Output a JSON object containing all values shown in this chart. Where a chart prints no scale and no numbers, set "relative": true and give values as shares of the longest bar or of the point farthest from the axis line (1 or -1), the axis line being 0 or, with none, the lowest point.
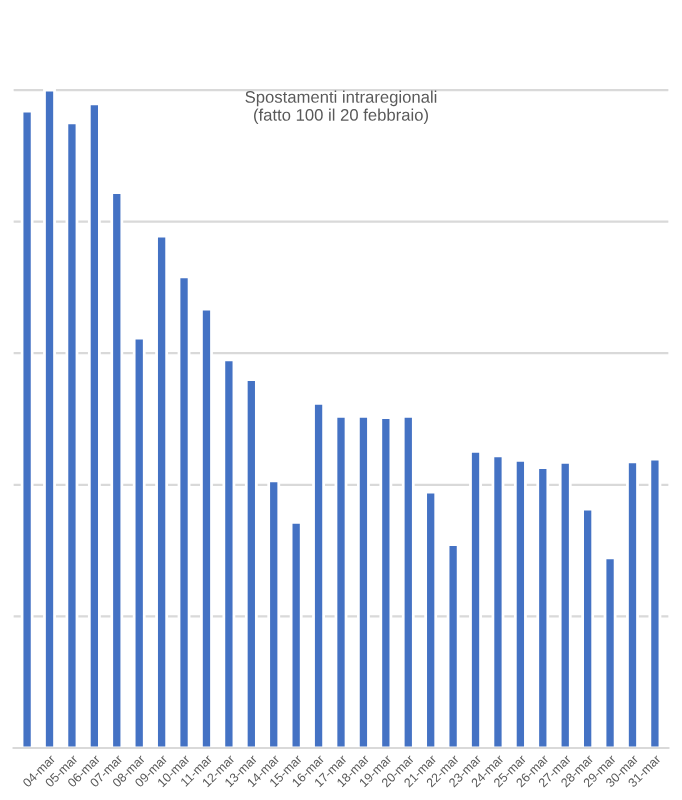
{
  "chart_data": {
    "type": "bar",
    "title": "Spostamenti intraregionali\n(fatto 100 il 20 febbraio)",
    "categories": [
      null,
      "04-mar",
      "05-mar",
      "06-mar",
      "07-mar",
      "08-mar",
      "09-mar",
      "10-mar",
      "11-mar",
      "12-mar",
      "13-mar",
      "14-mar",
      "15-mar",
      "16-mar",
      "17-mar",
      "18-mar",
      "19-mar",
      "20-mar",
      "21-mar",
      "22-mar",
      "23-mar",
      "24-mar",
      "25-mar",
      "26-mar",
      "27-mar",
      "28-mar",
      "29-mar",
      "30-mar",
      "31-mar"
    ],
    "values": [
      0.968,
      1,
      0.95,
      0.979,
      0.844,
      0.623,
      0.778,
      0.716,
      0.667,
      0.59,
      0.56,
      0.406,
      0.343,
      0.524,
      0.504,
      0.504,
      0.502,
      0.504,
      0.389,
      0.309,
      0.451,
      0.444,
      0.437,
      0.426,
      0.434,
      0.363,
      0.289,
      0.435,
      0.439
    ],
    "color": "#4472c4",
    "relative": true,
    "grid": "y"
  }
}
